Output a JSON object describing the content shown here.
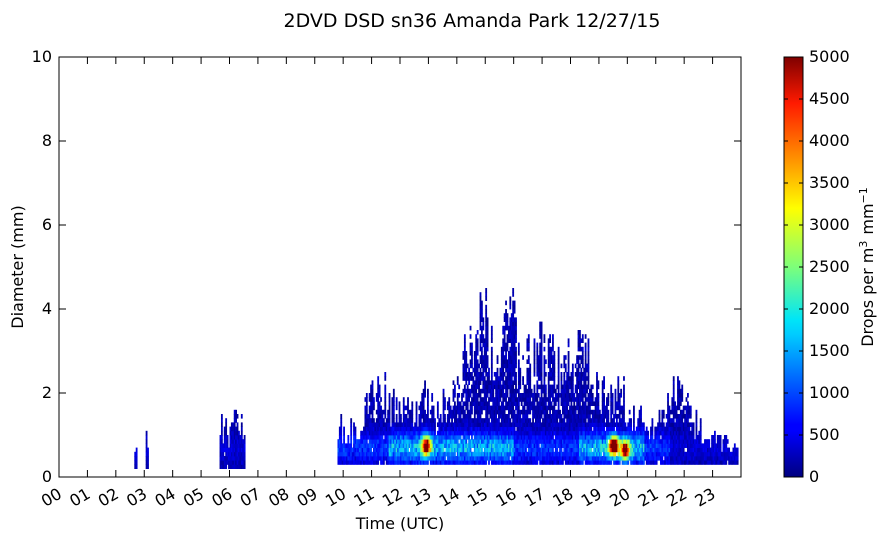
{
  "chart_data": {
    "type": "heatmap",
    "title": "2DVD DSD sn36 Amanda Park 12/27/15",
    "xlabel": "Time (UTC)",
    "ylabel": "Diameter (mm)",
    "xlim": [
      0,
      24
    ],
    "ylim": [
      0,
      10
    ],
    "x_tick_labels": [
      "00",
      "01",
      "02",
      "03",
      "04",
      "05",
      "06",
      "07",
      "08",
      "09",
      "10",
      "11",
      "12",
      "13",
      "14",
      "15",
      "16",
      "17",
      "18",
      "19",
      "20",
      "21",
      "22",
      "23"
    ],
    "y_ticks": [
      0,
      2,
      4,
      6,
      8,
      10
    ],
    "colorbar": {
      "label": "Drops per m³ mm⁻¹",
      "label_main": "Drops per m",
      "label_sup1": "3",
      "label_unit": "mm",
      "label_sup2": "−1",
      "min": 0,
      "max": 5000,
      "ticks": [
        0,
        500,
        1000,
        1500,
        2000,
        2500,
        3000,
        3500,
        4000,
        4500,
        5000
      ],
      "colormap": "jet"
    },
    "grid": false,
    "rain_intervals_utc": [
      [
        2.6,
        2.7
      ],
      [
        3.0,
        3.1
      ],
      [
        5.6,
        6.5
      ],
      [
        9.8,
        23.9
      ]
    ],
    "profile_hours": [
      9.8,
      10.3,
      10.8,
      11.3,
      11.8,
      12.3,
      12.8,
      13.3,
      13.8,
      14.3,
      14.8,
      15.3,
      15.8,
      16.3,
      16.8,
      17.3,
      17.8,
      18.3,
      18.8,
      19.3,
      19.8,
      20.3,
      20.8,
      21.3,
      21.8,
      22.3,
      22.8,
      23.3,
      23.9
    ],
    "max_diameter_mm": [
      1.4,
      1.2,
      1.8,
      2.4,
      2.0,
      1.8,
      2.2,
      1.6,
      2.2,
      3.2,
      4.4,
      3.6,
      4.6,
      3.0,
      3.5,
      3.2,
      2.8,
      3.8,
      2.6,
      2.2,
      2.2,
      1.6,
      1.2,
      2.0,
      2.6,
      1.6,
      1.2,
      1.0,
      0.8
    ],
    "peak_events": [
      {
        "hour": 12.9,
        "diameter_mm": 0.7,
        "drops": 4800
      },
      {
        "hour": 19.5,
        "diameter_mm": 0.7,
        "drops": 4900
      },
      {
        "hour": 19.9,
        "diameter_mm": 0.6,
        "drops": 4200
      }
    ]
  }
}
